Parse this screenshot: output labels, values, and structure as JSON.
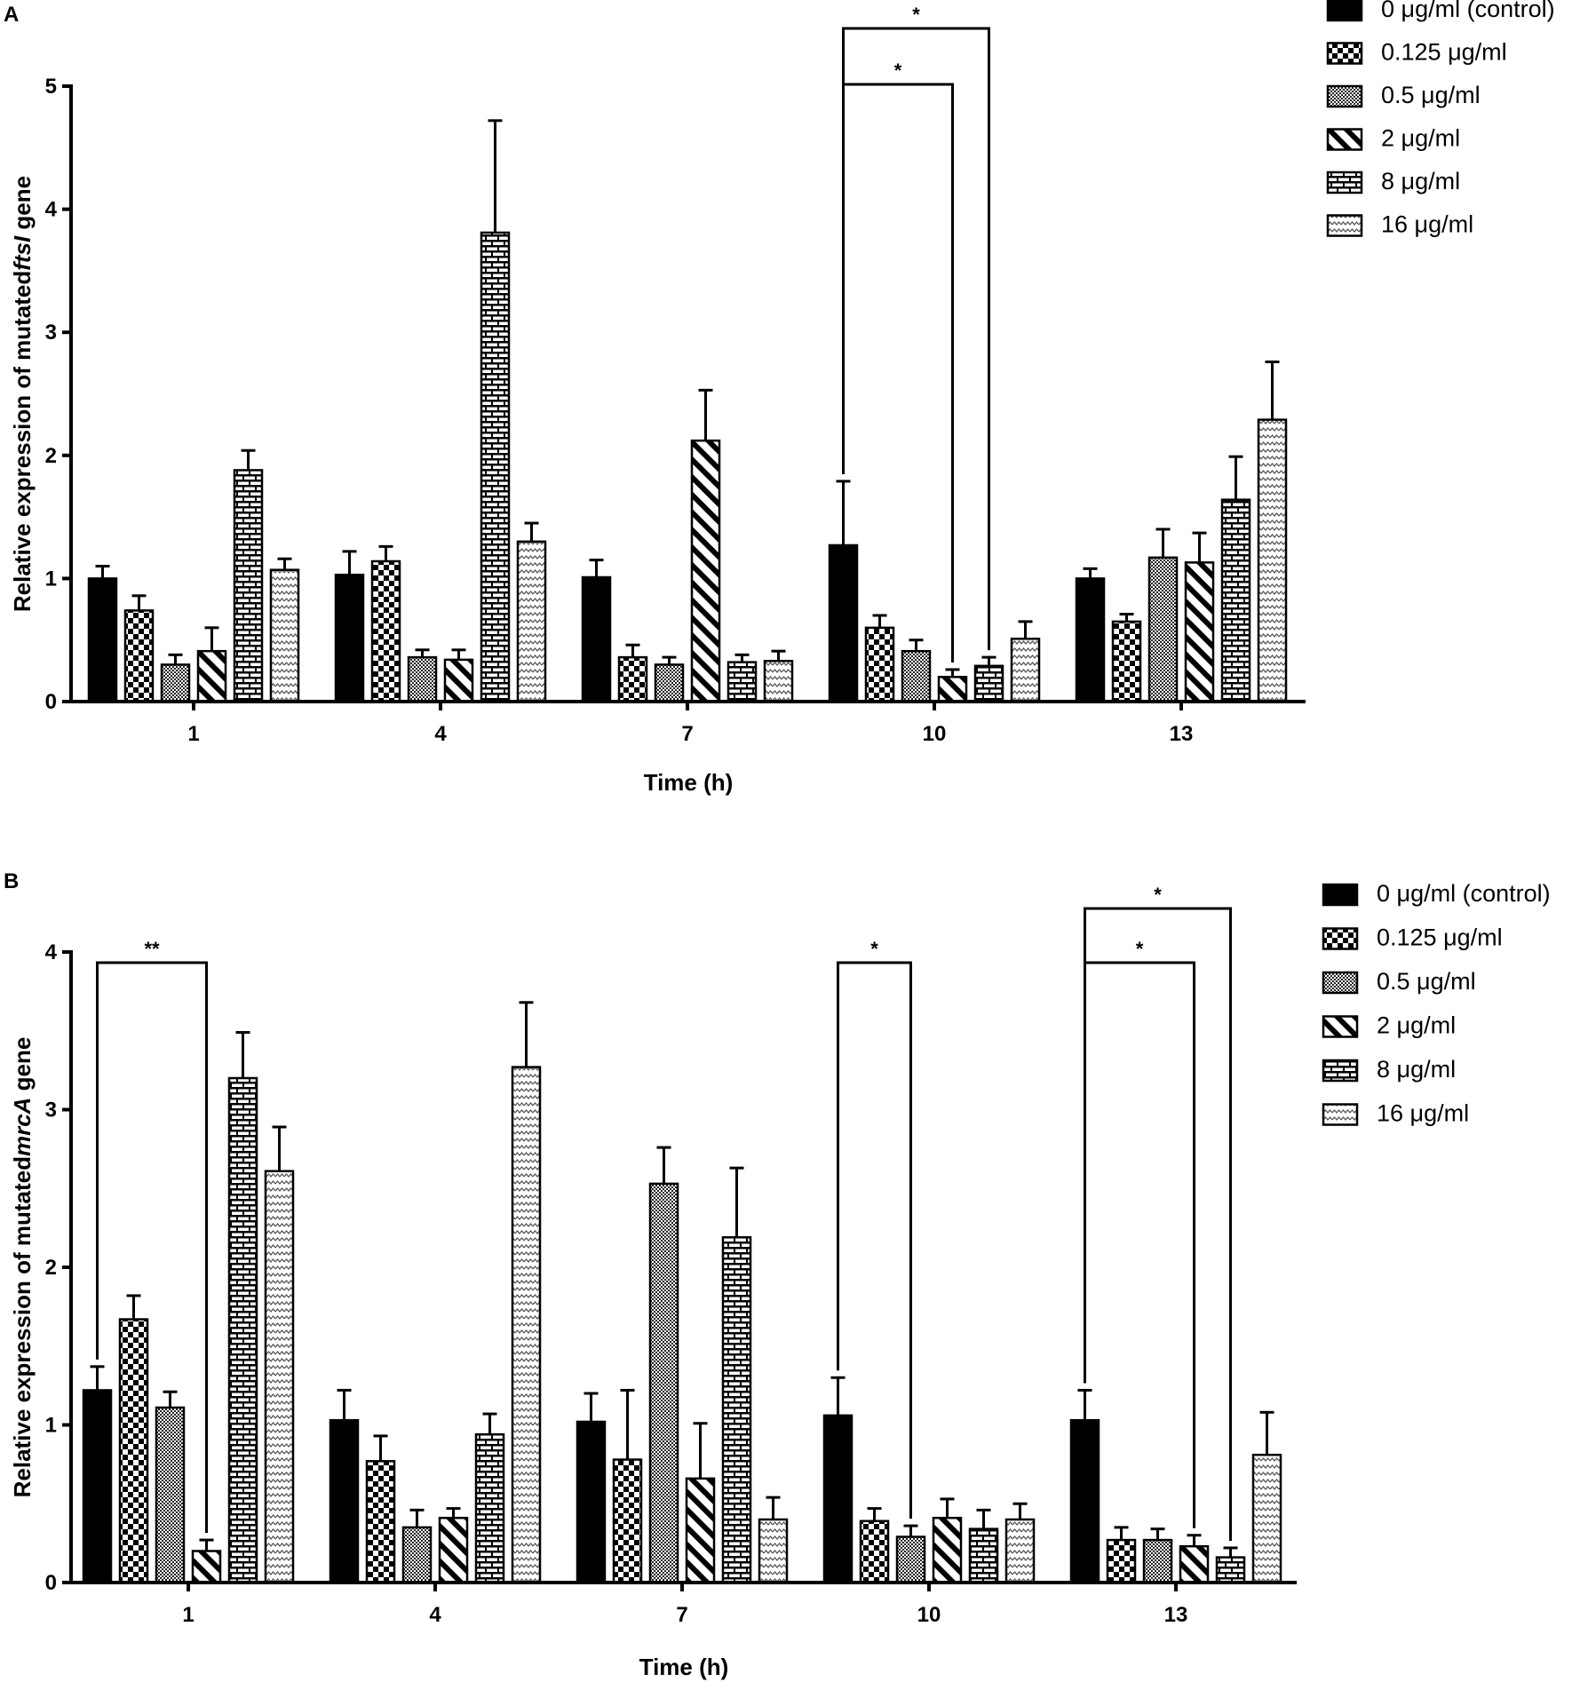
{
  "chart_data": [
    {
      "panel": "A",
      "type": "bar",
      "ylabel_prefix": "Relative expression of mutated",
      "ylabel_gene": "ftsI",
      "ylabel_suffix": " gene",
      "xlabel": "Time (h)",
      "ylim": [
        0,
        5
      ],
      "yticks": [
        "0",
        "1",
        "2",
        "3",
        "4",
        "5"
      ],
      "categories": [
        "1",
        "4",
        "7",
        "10",
        "13"
      ],
      "series": [
        {
          "name": "0 μg/ml (control)",
          "pattern": "solid",
          "values": [
            1.0,
            1.03,
            1.01,
            1.27,
            1.0
          ],
          "errors": [
            0.1,
            0.19,
            0.14,
            0.52,
            0.08
          ]
        },
        {
          "name": "0.125 μg/ml",
          "pattern": "checker",
          "values": [
            0.74,
            1.14,
            0.36,
            0.6,
            0.65
          ],
          "errors": [
            0.12,
            0.12,
            0.1,
            0.1,
            0.06
          ]
        },
        {
          "name": "0.5 μg/ml",
          "pattern": "fine",
          "values": [
            0.3,
            0.36,
            0.3,
            0.41,
            1.17
          ],
          "errors": [
            0.08,
            0.06,
            0.06,
            0.09,
            0.23
          ]
        },
        {
          "name": "2 μg/ml",
          "pattern": "diagonal",
          "values": [
            0.41,
            0.34,
            2.12,
            0.2,
            1.13
          ],
          "errors": [
            0.19,
            0.08,
            0.41,
            0.06,
            0.24
          ]
        },
        {
          "name": "8 μg/ml",
          "pattern": "brick",
          "values": [
            1.88,
            3.81,
            0.32,
            0.29,
            1.64
          ],
          "errors": [
            0.16,
            0.91,
            0.06,
            0.07,
            0.35
          ]
        },
        {
          "name": "16 μg/ml",
          "pattern": "wave",
          "values": [
            1.07,
            1.3,
            0.33,
            0.51,
            2.29
          ],
          "errors": [
            0.09,
            0.15,
            0.08,
            0.14,
            0.47
          ]
        }
      ],
      "significance": [
        {
          "label": "*",
          "category": 3,
          "from_series": 0,
          "to_series": 4
        },
        {
          "label": "*",
          "category": 3,
          "from_series": 0,
          "to_series": 3
        }
      ]
    },
    {
      "panel": "B",
      "type": "bar",
      "ylabel_prefix": "Relative expression of mutated",
      "ylabel_gene": "mrcA",
      "ylabel_suffix": " gene",
      "xlabel": "Time (h)",
      "ylim": [
        0,
        4
      ],
      "yticks": [
        "0",
        "1",
        "2",
        "3",
        "4"
      ],
      "categories": [
        "1",
        "4",
        "7",
        "10",
        "13"
      ],
      "series": [
        {
          "name": "0 μg/ml (control)",
          "pattern": "solid",
          "values": [
            1.22,
            1.03,
            1.02,
            1.06,
            1.03
          ],
          "errors": [
            0.15,
            0.19,
            0.18,
            0.24,
            0.19
          ]
        },
        {
          "name": "0.125 μg/ml",
          "pattern": "checker",
          "values": [
            1.67,
            0.77,
            0.78,
            0.39,
            0.27
          ],
          "errors": [
            0.15,
            0.16,
            0.44,
            0.08,
            0.08
          ]
        },
        {
          "name": "0.5 μg/ml",
          "pattern": "fine",
          "values": [
            1.11,
            0.35,
            2.53,
            0.29,
            0.27
          ],
          "errors": [
            0.1,
            0.11,
            0.23,
            0.07,
            0.07
          ]
        },
        {
          "name": "2 μg/ml",
          "pattern": "diagonal",
          "values": [
            0.2,
            0.41,
            0.66,
            0.41,
            0.23
          ],
          "errors": [
            0.07,
            0.06,
            0.35,
            0.12,
            0.07
          ]
        },
        {
          "name": "8 μg/ml",
          "pattern": "brick",
          "values": [
            3.2,
            0.94,
            2.19,
            0.34,
            0.16
          ],
          "errors": [
            0.29,
            0.13,
            0.44,
            0.12,
            0.06
          ]
        },
        {
          "name": "16 μg/ml",
          "pattern": "wave",
          "values": [
            2.61,
            3.27,
            0.4,
            0.4,
            0.81
          ],
          "errors": [
            0.28,
            0.41,
            0.14,
            0.1,
            0.27
          ]
        }
      ],
      "significance": [
        {
          "label": "**",
          "category": 0,
          "from_series": 0,
          "to_series": 3
        },
        {
          "label": "*",
          "category": 3,
          "from_series": 0,
          "to_series": 2
        },
        {
          "label": "*",
          "category": 4,
          "from_series": 0,
          "to_series": 4
        },
        {
          "label": "*",
          "category": 4,
          "from_series": 0,
          "to_series": 3
        }
      ]
    }
  ]
}
